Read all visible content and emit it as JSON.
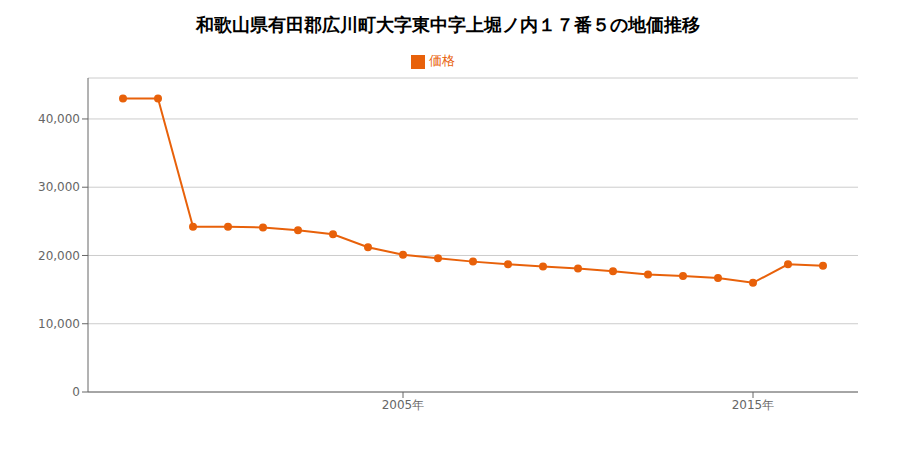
{
  "chart_data": {
    "type": "line",
    "title": "和歌山県有田郡広川町大字東中字上堀ノ内１７番５の地価推移",
    "x": [
      1997,
      1998,
      1999,
      2000,
      2001,
      2002,
      2003,
      2004,
      2005,
      2006,
      2007,
      2008,
      2009,
      2010,
      2011,
      2012,
      2013,
      2014,
      2015,
      2016,
      2017
    ],
    "series": [
      {
        "name": "価格",
        "color": "#E8610A",
        "marker": "circle",
        "values": [
          43000,
          43000,
          24200,
          24200,
          24100,
          23700,
          23100,
          21200,
          20100,
          19600,
          19100,
          18700,
          18400,
          18100,
          17700,
          17200,
          17000,
          16700,
          16000,
          18700,
          18500
        ]
      }
    ],
    "xlim": [
      1996,
      2018
    ],
    "xticks": [
      {
        "value": 2005,
        "label": "2005年"
      },
      {
        "value": 2015,
        "label": "2015年"
      }
    ],
    "ylim": [
      0,
      46000
    ],
    "yticks": [
      0,
      {
        "value": 10000,
        "label": "10,000"
      },
      {
        "value": 20000,
        "label": "20,000"
      },
      {
        "value": 30000,
        "label": "30,000"
      },
      {
        "value": 40000,
        "label": "40,000"
      }
    ],
    "grid": true,
    "legend": "top"
  }
}
